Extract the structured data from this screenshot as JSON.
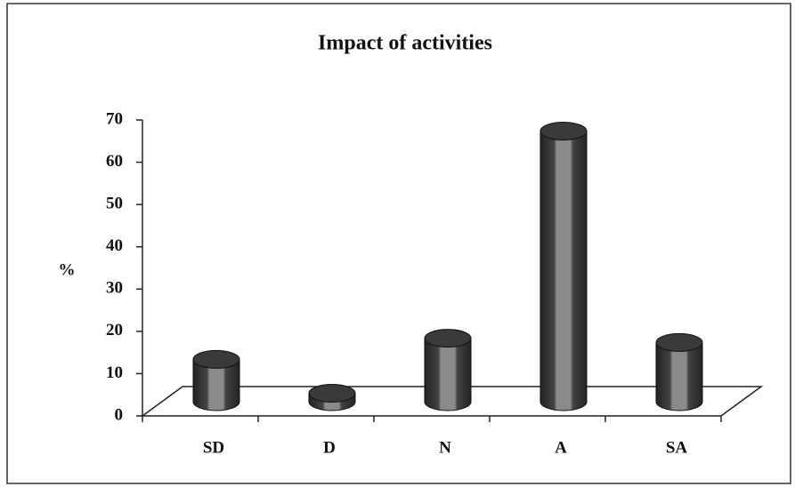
{
  "chart_data": {
    "type": "bar",
    "title": "Impact of activities",
    "y_label": "%",
    "categories": [
      "SD",
      "D",
      "N",
      "A",
      "SA"
    ],
    "values": [
      10,
      2,
      15,
      64,
      14
    ],
    "color": "#555555",
    "ylim": [
      0,
      70
    ],
    "yticks": [
      0,
      10,
      20,
      30,
      40,
      50,
      60,
      70
    ]
  }
}
